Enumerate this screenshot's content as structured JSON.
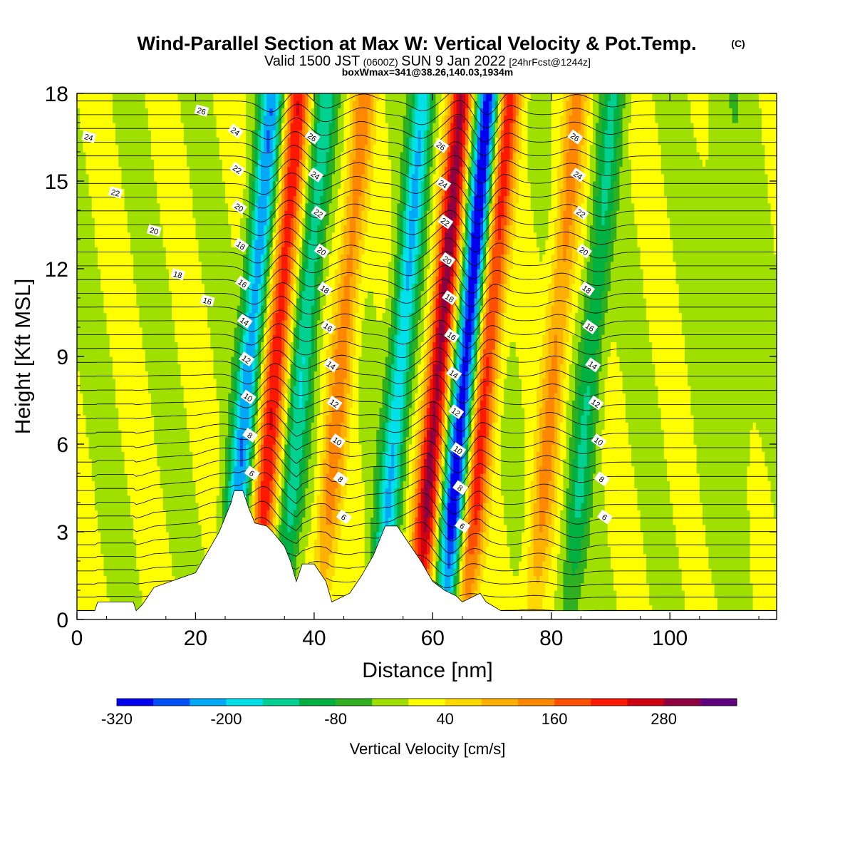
{
  "chart_data": {
    "type": "heatmap",
    "title": "Wind-Parallel Section at Max W: Vertical Velocity & Pot.Temp.",
    "copyright_mark": "(C)",
    "subtitle": {
      "valid_prefix": "Valid 1500 JST",
      "utc": "(0600Z)",
      "date": "SUN 9 Jan 2022",
      "forecast": "[24hrFcst@1244z]"
    },
    "subtitle2": "boxWmax=341@38.26,140.03,1934m",
    "xlabel": "Distance [nm]",
    "ylabel": "Height [Kft MSL]",
    "xlim": [
      0,
      118
    ],
    "ylim": [
      0,
      18
    ],
    "xticks": [
      "0",
      "20",
      "40",
      "60",
      "80",
      "100"
    ],
    "yticks": [
      "0",
      "3",
      "6",
      "9",
      "12",
      "15",
      "18"
    ],
    "colorbar": {
      "label": "Vertical Velocity [cm/s]",
      "tick_labels": [
        "-320",
        "-200",
        "-80",
        "40",
        "160",
        "280"
      ],
      "colors": [
        "#0000f0",
        "#0050f8",
        "#00a8f8",
        "#00e0e8",
        "#00d090",
        "#00b040",
        "#30b020",
        "#a0e000",
        "#ffff00",
        "#ffd800",
        "#ffb000",
        "#ff8800",
        "#ff5000",
        "#ff1800",
        "#d00010",
        "#900040",
        "#600080"
      ]
    },
    "wave_bands": [
      {
        "center_nm": 27.5,
        "velocity_cms": -230
      },
      {
        "center_nm": 32.0,
        "velocity_cms": 230
      },
      {
        "center_nm": 36.5,
        "velocity_cms": -150
      },
      {
        "center_nm": 43.0,
        "velocity_cms": 140
      },
      {
        "center_nm": 53.0,
        "velocity_cms": -200
      },
      {
        "center_nm": 59.5,
        "velocity_cms": 300
      },
      {
        "center_nm": 64.0,
        "velocity_cms": -320
      },
      {
        "center_nm": 67.5,
        "velocity_cms": 220
      },
      {
        "center_nm": 79.0,
        "velocity_cms": 130
      },
      {
        "center_nm": 85.0,
        "velocity_cms": -120
      }
    ],
    "terrain": [
      {
        "x": 0,
        "h": 0.3
      },
      {
        "x": 3,
        "h": 0.3
      },
      {
        "x": 3.5,
        "h": 0.6
      },
      {
        "x": 9.5,
        "h": 0.6
      },
      {
        "x": 10,
        "h": 0.3
      },
      {
        "x": 11,
        "h": 0.5
      },
      {
        "x": 13,
        "h": 1.1
      },
      {
        "x": 20,
        "h": 1.6
      },
      {
        "x": 22,
        "h": 2.3
      },
      {
        "x": 24,
        "h": 3.0
      },
      {
        "x": 26,
        "h": 4.0
      },
      {
        "x": 26.5,
        "h": 4.4
      },
      {
        "x": 28,
        "h": 4.4
      },
      {
        "x": 29,
        "h": 3.8
      },
      {
        "x": 30,
        "h": 3.3
      },
      {
        "x": 32,
        "h": 3.2
      },
      {
        "x": 33,
        "h": 3.0
      },
      {
        "x": 35,
        "h": 2.5
      },
      {
        "x": 36,
        "h": 2.0
      },
      {
        "x": 37,
        "h": 1.3
      },
      {
        "x": 38,
        "h": 1.9
      },
      {
        "x": 40,
        "h": 1.9
      },
      {
        "x": 42,
        "h": 1.3
      },
      {
        "x": 43,
        "h": 0.6
      },
      {
        "x": 46,
        "h": 0.9
      },
      {
        "x": 48,
        "h": 1.5
      },
      {
        "x": 50,
        "h": 2.2
      },
      {
        "x": 52,
        "h": 3.2
      },
      {
        "x": 54,
        "h": 3.2
      },
      {
        "x": 56,
        "h": 2.6
      },
      {
        "x": 58,
        "h": 2.0
      },
      {
        "x": 60,
        "h": 1.3
      },
      {
        "x": 62,
        "h": 1.0
      },
      {
        "x": 64,
        "h": 0.8
      },
      {
        "x": 65,
        "h": 0.6
      },
      {
        "x": 68,
        "h": 0.9
      },
      {
        "x": 69,
        "h": 0.6
      },
      {
        "x": 71.5,
        "h": 0.3
      },
      {
        "x": 118,
        "h": 0.3
      }
    ],
    "theta_labels": [
      "6",
      "8",
      "10",
      "12",
      "14",
      "16",
      "18",
      "20",
      "22",
      "24",
      "26"
    ]
  }
}
